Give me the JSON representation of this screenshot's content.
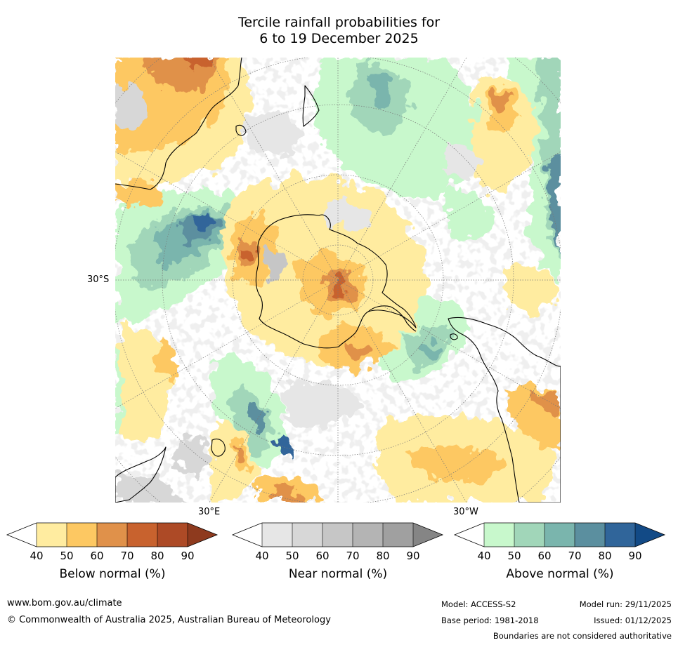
{
  "title": {
    "line1": "Tercile rainfall probabilities for",
    "line2": "6 to 19 December 2025"
  },
  "map": {
    "latitude_label": "30°S",
    "longitude_label_east": "30°E",
    "longitude_label_west": "30°W",
    "view": "South polar stereographic projection centred on Antarctica"
  },
  "legends": [
    {
      "title": "Below normal (%)",
      "ticks": [
        "40",
        "50",
        "60",
        "70",
        "80",
        "90"
      ],
      "colors": [
        "#ffffff",
        "#ffeca0",
        "#fdc862",
        "#e0914a",
        "#c8622e",
        "#ad4a26",
        "#8e3a1e"
      ]
    },
    {
      "title": "Near normal (%)",
      "ticks": [
        "40",
        "50",
        "60",
        "70",
        "80",
        "90"
      ],
      "colors": [
        "#ffffff",
        "#e6e6e6",
        "#d7d7d7",
        "#c6c6c6",
        "#b4b4b4",
        "#a0a0a0",
        "#858585"
      ]
    },
    {
      "title": "Above normal (%)",
      "ticks": [
        "40",
        "50",
        "60",
        "70",
        "80",
        "90"
      ],
      "colors": [
        "#ffffff",
        "#c8f8cc",
        "#a1d6b9",
        "#7ab5ad",
        "#5b8f9f",
        "#30659a",
        "#124a86"
      ]
    }
  ],
  "footer": {
    "website": "www.bom.gov.au/climate",
    "copyright": "© Commonwealth of Australia 2025, Australian Bureau of Meteorology",
    "model": "Model: ACCESS-S2",
    "model_run": "Model run: 29/11/2025",
    "base_period": "Base period: 1981-2018",
    "issued": "Issued: 01/12/2025",
    "disclaimer": "Boundaries are not considered authoritative"
  }
}
